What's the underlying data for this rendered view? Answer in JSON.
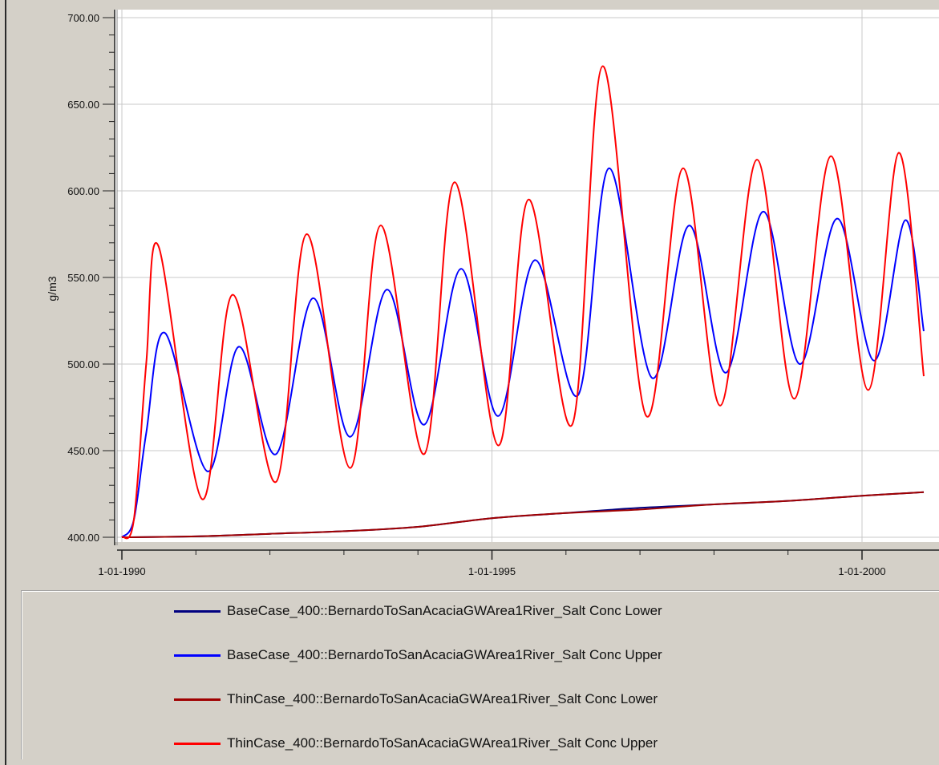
{
  "chart_data": {
    "type": "line",
    "title": "",
    "xlabel": "",
    "ylabel": "g/m3",
    "ylim": [
      400,
      700
    ],
    "xlim": [
      "1990-01-01",
      "2000-11-01"
    ],
    "y_ticks": [
      "700.00",
      "650.00",
      "600.00",
      "550.00",
      "500.00",
      "450.00",
      "400.00"
    ],
    "x_tick_labels": [
      "1-01-1990",
      "1-01-1995",
      "1-01-2000"
    ],
    "grid": true,
    "legend_position": "bottom",
    "series": [
      {
        "name": "BaseCase_400::BernardoToSanAcaciaGWArea1River_Salt Conc Lower",
        "color": "#000080",
        "x": [
          "1990-01-01",
          "1991-01-01",
          "1992-01-01",
          "1993-01-01",
          "1994-01-01",
          "1995-01-01",
          "1996-01-01",
          "1997-01-01",
          "1998-01-01",
          "1999-01-01",
          "2000-01-01",
          "2000-11-01"
        ],
        "y": [
          400,
          400.5,
          402,
          403.5,
          406,
          411,
          414,
          417,
          419,
          421,
          424,
          426
        ]
      },
      {
        "name": "BaseCase_400::BernardoToSanAcaciaGWArea1River_Salt Conc Upper",
        "color": "#0000ff",
        "x": [
          "1990-01-01",
          "1990-03-01",
          "1990-05-01",
          "1990-08-01",
          "1991-03-01",
          "1991-08-01",
          "1992-02-01",
          "1992-08-01",
          "1993-02-01",
          "1993-08-01",
          "1994-02-01",
          "1994-08-01",
          "1995-02-01",
          "1995-08-01",
          "1996-03-01",
          "1996-08-01",
          "1997-03-01",
          "1997-09-01",
          "1998-03-01",
          "1998-09-01",
          "1999-03-01",
          "1999-09-01",
          "2000-03-01",
          "2000-08-01",
          "2000-11-01"
        ],
        "y": [
          400,
          410,
          460,
          518,
          438,
          510,
          448,
          538,
          458,
          543,
          465,
          555,
          470,
          560,
          482,
          613,
          492,
          580,
          495,
          588,
          500,
          584,
          502,
          583,
          519
        ]
      },
      {
        "name": "ThinCase_400::BernardoToSanAcaciaGWArea1River_Salt Conc Lower",
        "color": "#a00000",
        "x": [
          "1990-01-01",
          "1991-01-01",
          "1992-01-01",
          "1993-01-01",
          "1994-01-01",
          "1995-01-01",
          "1996-01-01",
          "1997-01-01",
          "1998-01-01",
          "1999-01-01",
          "2000-01-01",
          "2000-11-01"
        ],
        "y": [
          400,
          400.5,
          402,
          403.5,
          406,
          411,
          414,
          416,
          419,
          421,
          424,
          426
        ]
      },
      {
        "name": "ThinCase_400::BernardoToSanAcaciaGWArea1River_Salt Conc Upper",
        "color": "#ff0000",
        "x": [
          "1990-01-01",
          "1990-03-01",
          "1990-05-01",
          "1990-07-01",
          "1991-02-01",
          "1991-07-01",
          "1992-02-01",
          "1992-07-01",
          "1993-02-01",
          "1993-07-01",
          "1994-02-01",
          "1994-07-01",
          "1995-02-01",
          "1995-07-01",
          "1996-02-01",
          "1996-07-01",
          "1997-02-01",
          "1997-08-01",
          "1998-02-01",
          "1998-08-01",
          "1999-02-01",
          "1999-08-01",
          "2000-02-01",
          "2000-07-01",
          "2000-11-01"
        ],
        "y": [
          400,
          410,
          500,
          568,
          422,
          540,
          432,
          575,
          440,
          580,
          448,
          605,
          453,
          595,
          465,
          672,
          470,
          613,
          476,
          618,
          480,
          620,
          485,
          622,
          493
        ]
      }
    ]
  }
}
